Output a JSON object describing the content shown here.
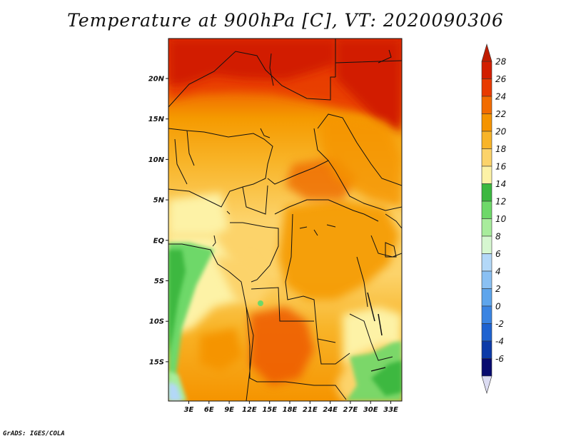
{
  "title": "Temperature at 900hPa [C], VT: 2020090306",
  "credit": "GrADS: IGES/COLA",
  "map": {
    "lat_labels": [
      "20N",
      "15N",
      "10N",
      "5N",
      "EQ",
      "5S",
      "10S",
      "15S"
    ],
    "lon_labels": [
      "3E",
      "6E",
      "9E",
      "12E",
      "15E",
      "18E",
      "21E",
      "24E",
      "27E",
      "30E",
      "33E"
    ]
  },
  "colorbar": {
    "labels": [
      "28",
      "26",
      "24",
      "22",
      "20",
      "18",
      "16",
      "14",
      "12",
      "10",
      "8",
      "6",
      "4",
      "2",
      "0",
      "-2",
      "-4",
      "-6"
    ],
    "colors_top_to_bottom": [
      "#d21e00",
      "#e83a00",
      "#f26c00",
      "#f59400",
      "#f8b428",
      "#fcd36a",
      "#fdf2a6",
      "#3cb840",
      "#6ed869",
      "#a8ec9c",
      "#d6f7d0",
      "#b3d8f8",
      "#8ac0f3",
      "#5ea5ec",
      "#3a84e2",
      "#1e62d0",
      "#0c3aa8",
      "#070a6e"
    ],
    "tip_top_color": "#c01c00",
    "tip_bottom_color": "#dcdcf2"
  }
}
